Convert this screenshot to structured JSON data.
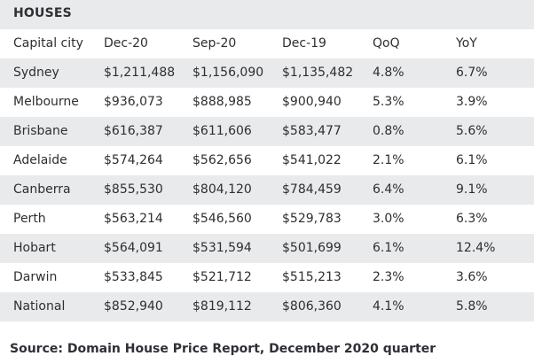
{
  "table": {
    "title": "HOUSES",
    "columns": [
      "Capital city",
      "Dec-20",
      "Sep-20",
      "Dec-19",
      "QoQ",
      "YoY"
    ],
    "rows": [
      [
        "Sydney",
        "$1,211,488",
        "$1,156,090",
        "$1,135,482",
        "4.8%",
        "6.7%"
      ],
      [
        "Melbourne",
        "$936,073",
        "$888,985",
        "$900,940",
        "5.3%",
        "3.9%"
      ],
      [
        "Brisbane",
        "$616,387",
        "$611,606",
        "$583,477",
        "0.8%",
        "5.6%"
      ],
      [
        "Adelaide",
        "$574,264",
        "$562,656",
        "$541,022",
        "2.1%",
        "6.1%"
      ],
      [
        "Canberra",
        "$855,530",
        "$804,120",
        "$784,459",
        "6.4%",
        "9.1%"
      ],
      [
        "Perth",
        "$563,214",
        "$546,560",
        "$529,783",
        "3.0%",
        "6.3%"
      ],
      [
        "Hobart",
        "$564,091",
        "$531,594",
        "$501,699",
        "6.1%",
        "12.4%"
      ],
      [
        "Darwin",
        "$533,845",
        "$521,712",
        "$515,213",
        "2.3%",
        "3.6%"
      ],
      [
        "National",
        "$852,940",
        "$819,112",
        "$806,360",
        "4.1%",
        "5.8%"
      ]
    ]
  },
  "source": "Source: Domain House Price Report, December 2020 quarter",
  "colors": {
    "shaded_row": "#e9eaec",
    "text": "#2e2e33"
  }
}
